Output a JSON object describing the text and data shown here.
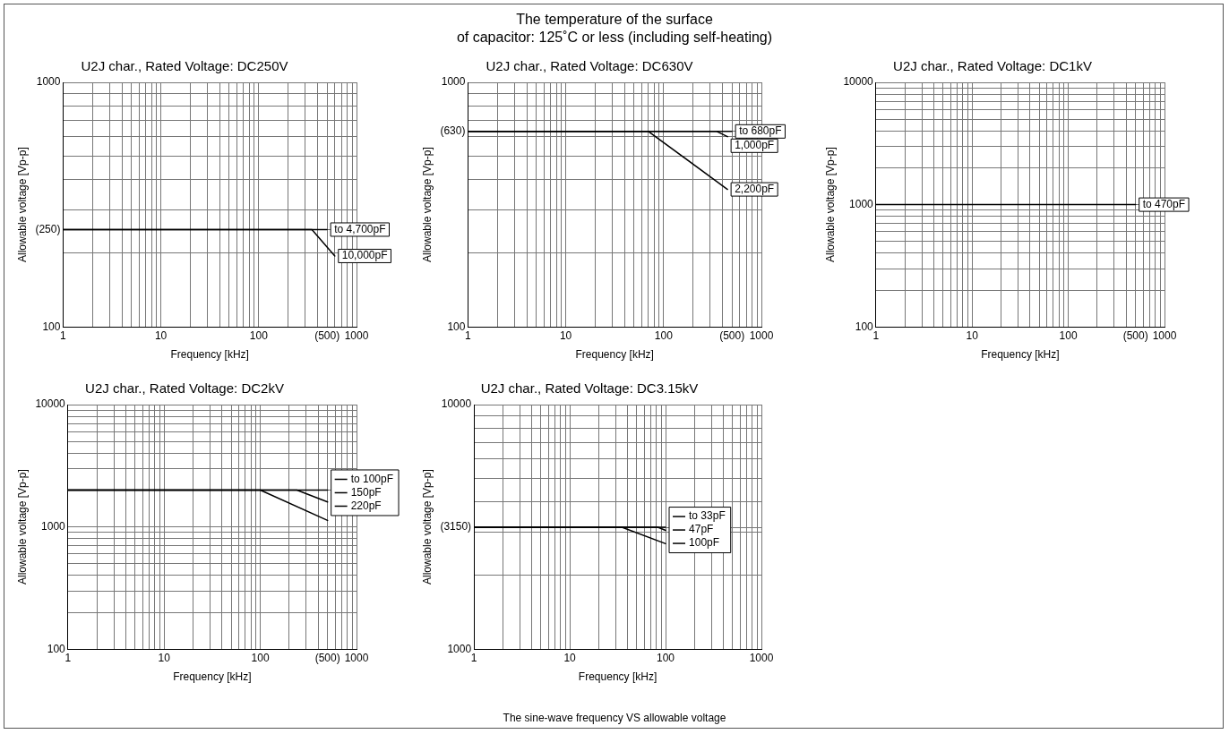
{
  "chart_data": [
    {
      "type": "line",
      "title": "U2J char., Rated Voltage: DC250V",
      "xlabel": "Frequency [kHz]",
      "ylabel": "Allowable voltage [Vp-p]",
      "log": "xy",
      "grid": true,
      "annotations": [
        "The temperature of the surface",
        "of capacitor: 125˚C or less (including self-heating)"
      ],
      "xlim": [
        1,
        1000
      ],
      "ylim": [
        100,
        1000
      ],
      "xticks": [
        1,
        {
          "value": 2,
          "label": null
        },
        {
          "value": 3,
          "label": null
        },
        {
          "value": 4,
          "label": null
        },
        {
          "value": 5,
          "label": null
        },
        {
          "value": 6,
          "label": null
        },
        {
          "value": 7,
          "label": null
        },
        {
          "value": 8,
          "label": null
        },
        {
          "value": 9,
          "label": null
        },
        10,
        {
          "value": 20,
          "label": null
        },
        {
          "value": 30,
          "label": null
        },
        {
          "value": 40,
          "label": null
        },
        {
          "value": 50,
          "label": null
        },
        {
          "value": 60,
          "label": null
        },
        {
          "value": 70,
          "label": null
        },
        {
          "value": 80,
          "label": null
        },
        {
          "value": 90,
          "label": null
        },
        100,
        {
          "value": 200,
          "label": null
        },
        {
          "value": 300,
          "label": null
        },
        {
          "value": 400,
          "label": null
        },
        {
          "value": 500,
          "label": "(500)"
        },
        {
          "value": 600,
          "label": null
        },
        {
          "value": 700,
          "label": null
        },
        {
          "value": 800,
          "label": null
        },
        {
          "value": 900,
          "label": null
        },
        1000
      ],
      "yticks": [
        100,
        {
          "value": 200,
          "label": null
        },
        {
          "value": 250,
          "label": "(250)"
        },
        {
          "value": 300,
          "label": null
        },
        {
          "value": 400,
          "label": null
        },
        {
          "value": 500,
          "label": null
        },
        {
          "value": 600,
          "label": null
        },
        {
          "value": 700,
          "label": null
        },
        {
          "value": 800,
          "label": null
        },
        {
          "value": 900,
          "label": null
        },
        1000
      ],
      "series": [
        {
          "name": "to 4,700pF",
          "color": "#000000",
          "x": [
            1,
            500
          ],
          "values": [
            250,
            250
          ]
        },
        {
          "name": "10,000pF",
          "color": "#000000",
          "x": [
            1,
            350,
            600
          ],
          "values": [
            250,
            250,
            195
          ]
        }
      ]
    },
    {
      "type": "line",
      "title": "U2J char., Rated Voltage: DC630V",
      "xlabel": "Frequency [kHz]",
      "ylabel": "Allowable voltage [Vp-p]",
      "log": "xy",
      "grid": true,
      "xlim": [
        1,
        1000
      ],
      "ylim": [
        100,
        1000
      ],
      "xticks": [
        1,
        {
          "value": 2,
          "label": null
        },
        {
          "value": 3,
          "label": null
        },
        {
          "value": 4,
          "label": null
        },
        {
          "value": 5,
          "label": null
        },
        {
          "value": 6,
          "label": null
        },
        {
          "value": 7,
          "label": null
        },
        {
          "value": 8,
          "label": null
        },
        {
          "value": 9,
          "label": null
        },
        10,
        {
          "value": 20,
          "label": null
        },
        {
          "value": 30,
          "label": null
        },
        {
          "value": 40,
          "label": null
        },
        {
          "value": 50,
          "label": null
        },
        {
          "value": 60,
          "label": null
        },
        {
          "value": 70,
          "label": null
        },
        {
          "value": 80,
          "label": null
        },
        {
          "value": 90,
          "label": null
        },
        100,
        {
          "value": 200,
          "label": null
        },
        {
          "value": 300,
          "label": null
        },
        {
          "value": 400,
          "label": null
        },
        {
          "value": 500,
          "label": "(500)"
        },
        {
          "value": 600,
          "label": null
        },
        {
          "value": 700,
          "label": null
        },
        {
          "value": 800,
          "label": null
        },
        {
          "value": 900,
          "label": null
        },
        1000
      ],
      "yticks": [
        100,
        {
          "value": 200,
          "label": null
        },
        {
          "value": 300,
          "label": null
        },
        {
          "value": 400,
          "label": null
        },
        {
          "value": 500,
          "label": null
        },
        {
          "value": 600,
          "label": null
        },
        {
          "value": 630,
          "label": "(630)"
        },
        {
          "value": 700,
          "label": null
        },
        {
          "value": 800,
          "label": null
        },
        {
          "value": 900,
          "label": null
        },
        1000
      ],
      "series": [
        {
          "name": "to 680pF",
          "color": "#000000",
          "x": [
            1,
            500
          ],
          "values": [
            630,
            630
          ]
        },
        {
          "name": "1,000pF",
          "color": "#000000",
          "x": [
            1,
            350,
            450
          ],
          "values": [
            630,
            630,
            600
          ]
        },
        {
          "name": "2,200pF",
          "color": "#000000",
          "x": [
            1,
            70,
            450
          ],
          "values": [
            630,
            630,
            365
          ]
        }
      ]
    },
    {
      "type": "line",
      "title": "U2J char., Rated Voltage: DC1kV",
      "xlabel": "Frequency [kHz]",
      "ylabel": "Allowable voltage [Vp-p]",
      "log": "xy",
      "grid": true,
      "xlim": [
        1,
        1000
      ],
      "ylim": [
        100,
        10000
      ],
      "xticks": [
        1,
        {
          "value": 2,
          "label": null
        },
        {
          "value": 3,
          "label": null
        },
        {
          "value": 4,
          "label": null
        },
        {
          "value": 5,
          "label": null
        },
        {
          "value": 6,
          "label": null
        },
        {
          "value": 7,
          "label": null
        },
        {
          "value": 8,
          "label": null
        },
        {
          "value": 9,
          "label": null
        },
        10,
        {
          "value": 20,
          "label": null
        },
        {
          "value": 30,
          "label": null
        },
        {
          "value": 40,
          "label": null
        },
        {
          "value": 50,
          "label": null
        },
        {
          "value": 60,
          "label": null
        },
        {
          "value": 70,
          "label": null
        },
        {
          "value": 80,
          "label": null
        },
        {
          "value": 90,
          "label": null
        },
        100,
        {
          "value": 200,
          "label": null
        },
        {
          "value": 300,
          "label": null
        },
        {
          "value": 400,
          "label": null
        },
        {
          "value": 500,
          "label": "(500)"
        },
        {
          "value": 600,
          "label": null
        },
        {
          "value": 700,
          "label": null
        },
        {
          "value": 800,
          "label": null
        },
        {
          "value": 900,
          "label": null
        },
        1000
      ],
      "yticks": [
        100,
        {
          "value": 200,
          "label": null
        },
        {
          "value": 300,
          "label": null
        },
        {
          "value": 400,
          "label": null
        },
        {
          "value": 500,
          "label": null
        },
        {
          "value": 600,
          "label": null
        },
        {
          "value": 700,
          "label": null
        },
        {
          "value": 800,
          "label": null
        },
        {
          "value": 900,
          "label": null
        },
        1000,
        {
          "value": 2000,
          "label": null
        },
        {
          "value": 3000,
          "label": null
        },
        {
          "value": 4000,
          "label": null
        },
        {
          "value": 5000,
          "label": null
        },
        {
          "value": 6000,
          "label": null
        },
        {
          "value": 7000,
          "label": null
        },
        {
          "value": 8000,
          "label": null
        },
        {
          "value": 9000,
          "label": null
        },
        10000
      ],
      "series": [
        {
          "name": "to 470pF",
          "color": "#000000",
          "x": [
            1,
            500
          ],
          "values": [
            1000,
            1000
          ]
        }
      ]
    },
    {
      "type": "line",
      "title": "U2J char., Rated Voltage: DC2kV",
      "xlabel": "Frequency [kHz]",
      "ylabel": "Allowable voltage [Vp-p]",
      "log": "xy",
      "grid": true,
      "legend": "right",
      "xlim": [
        1,
        1000
      ],
      "ylim": [
        100,
        10000
      ],
      "xticks": [
        1,
        {
          "value": 2,
          "label": null
        },
        {
          "value": 3,
          "label": null
        },
        {
          "value": 4,
          "label": null
        },
        {
          "value": 5,
          "label": null
        },
        {
          "value": 6,
          "label": null
        },
        {
          "value": 7,
          "label": null
        },
        {
          "value": 8,
          "label": null
        },
        {
          "value": 9,
          "label": null
        },
        10,
        {
          "value": 20,
          "label": null
        },
        {
          "value": 30,
          "label": null
        },
        {
          "value": 40,
          "label": null
        },
        {
          "value": 50,
          "label": null
        },
        {
          "value": 60,
          "label": null
        },
        {
          "value": 70,
          "label": null
        },
        {
          "value": 80,
          "label": null
        },
        {
          "value": 90,
          "label": null
        },
        100,
        {
          "value": 200,
          "label": null
        },
        {
          "value": 300,
          "label": null
        },
        {
          "value": 400,
          "label": null
        },
        {
          "value": 500,
          "label": "(500)"
        },
        {
          "value": 600,
          "label": null
        },
        {
          "value": 700,
          "label": null
        },
        {
          "value": 800,
          "label": null
        },
        {
          "value": 900,
          "label": null
        },
        1000
      ],
      "yticks": [
        100,
        {
          "value": 200,
          "label": null
        },
        {
          "value": 300,
          "label": null
        },
        {
          "value": 400,
          "label": null
        },
        {
          "value": 500,
          "label": null
        },
        {
          "value": 600,
          "label": null
        },
        {
          "value": 700,
          "label": null
        },
        {
          "value": 800,
          "label": null
        },
        {
          "value": 900,
          "label": null
        },
        1000,
        {
          "value": 2000,
          "label": null
        },
        {
          "value": 3000,
          "label": null
        },
        {
          "value": 4000,
          "label": null
        },
        {
          "value": 5000,
          "label": null
        },
        {
          "value": 6000,
          "label": null
        },
        {
          "value": 7000,
          "label": null
        },
        {
          "value": 8000,
          "label": null
        },
        {
          "value": 9000,
          "label": null
        },
        10000
      ],
      "series": [
        {
          "name": "to 100pF",
          "color": "#000000",
          "x": [
            1,
            500
          ],
          "values": [
            2000,
            2000
          ]
        },
        {
          "name": "150pF",
          "color": "#000000",
          "x": [
            1,
            240,
            500
          ],
          "values": [
            2000,
            2000,
            1600
          ]
        },
        {
          "name": "220pF",
          "color": "#000000",
          "x": [
            1,
            100,
            500
          ],
          "values": [
            2000,
            2000,
            1130
          ]
        }
      ]
    },
    {
      "type": "line",
      "title": "U2J char., Rated Voltage: DC3.15kV",
      "xlabel": "Frequency [kHz]",
      "ylabel": "Allowable voltage [Vp-p]",
      "log": "xy",
      "grid": true,
      "legend": "right",
      "annotations": [
        "The sine-wave frequency VS allowable voltage"
      ],
      "xlim": [
        1,
        1000
      ],
      "ylim": [
        1000,
        10000
      ],
      "xticks": [
        1,
        {
          "value": 2,
          "label": null
        },
        {
          "value": 3,
          "label": null
        },
        {
          "value": 4,
          "label": null
        },
        {
          "value": 5,
          "label": null
        },
        {
          "value": 6,
          "label": null
        },
        {
          "value": 7,
          "label": null
        },
        {
          "value": 8,
          "label": null
        },
        {
          "value": 9,
          "label": null
        },
        10,
        {
          "value": 20,
          "label": null
        },
        {
          "value": 30,
          "label": null
        },
        {
          "value": 40,
          "label": null
        },
        {
          "value": 50,
          "label": null
        },
        {
          "value": 60,
          "label": null
        },
        {
          "value": 70,
          "label": null
        },
        {
          "value": 80,
          "label": null
        },
        {
          "value": 90,
          "label": null
        },
        100,
        {
          "value": 200,
          "label": null
        },
        {
          "value": 300,
          "label": null
        },
        {
          "value": 400,
          "label": null
        },
        {
          "value": 500,
          "label": null
        },
        {
          "value": 600,
          "label": null
        },
        {
          "value": 700,
          "label": null
        },
        {
          "value": 800,
          "label": null
        },
        {
          "value": 900,
          "label": null
        },
        1000
      ],
      "yticks": [
        1000,
        {
          "value": 2000,
          "label": null
        },
        {
          "value": 3000,
          "label": null
        },
        {
          "value": 3150,
          "label": "(3150)"
        },
        {
          "value": 4000,
          "label": null
        },
        {
          "value": 5000,
          "label": null
        },
        {
          "value": 6000,
          "label": null
        },
        {
          "value": 7000,
          "label": null
        },
        {
          "value": 8000,
          "label": null
        },
        {
          "value": 9000,
          "label": null
        },
        10000
      ],
      "series": [
        {
          "name": "to 33pF",
          "color": "#000000",
          "x": [
            1,
            100
          ],
          "values": [
            3150,
            3150
          ]
        },
        {
          "name": "47pF",
          "color": "#000000",
          "x": [
            1,
            83,
            100
          ],
          "values": [
            3150,
            3150,
            3060
          ]
        },
        {
          "name": "100pF",
          "color": "#000000",
          "x": [
            1,
            35,
            100
          ],
          "values": [
            3150,
            3150,
            2700
          ]
        }
      ]
    }
  ]
}
